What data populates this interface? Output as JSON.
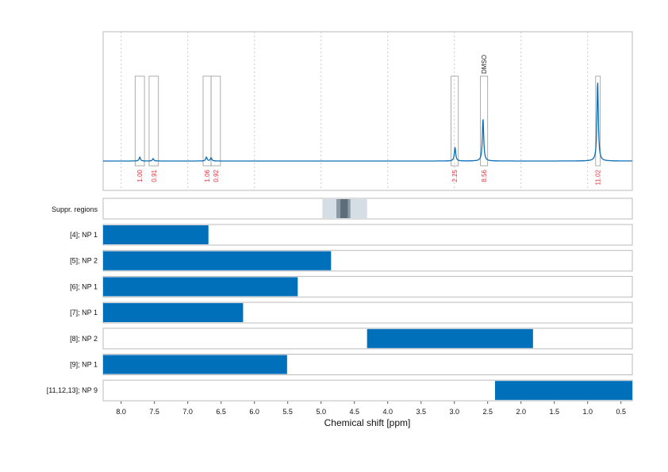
{
  "chart_data": {
    "type": "line",
    "xlabel": "Chemical shift [ppm]",
    "xlim": [
      8.27,
      0.33
    ],
    "x_reversed": true,
    "xticks": [
      "8.0",
      "7.5",
      "7.0",
      "6.5",
      "6.0",
      "5.5",
      "5.0",
      "4.5",
      "4.0",
      "3.5",
      "3.0",
      "2.5",
      "2.0",
      "1.5",
      "1.0",
      "0.5"
    ],
    "grid": "vertical dashed every 1 ppm",
    "colors": {
      "spectrum": "#0b6fb8",
      "bar": "#0070bb",
      "integral_label": "#e8303a",
      "suppr_light": "#d5dde5",
      "suppr_mid": "#8a9aa6",
      "suppr_dark": "#5d6e79"
    },
    "spectrum_peaks": [
      {
        "ppm": 7.72,
        "intensity": 0.05
      },
      {
        "ppm": 7.52,
        "intensity": 0.03
      },
      {
        "ppm": 6.72,
        "intensity": 0.05
      },
      {
        "ppm": 6.65,
        "intensity": 0.04
      },
      {
        "ppm": 2.99,
        "intensity": 0.17
      },
      {
        "ppm": 2.57,
        "intensity": 0.53
      },
      {
        "ppm": 0.85,
        "intensity": 1.0
      }
    ],
    "integrals": [
      {
        "from": 7.79,
        "to": 7.65,
        "label": "1.00"
      },
      {
        "from": 7.58,
        "to": 7.44,
        "label": "0.91"
      },
      {
        "from": 6.77,
        "to": 6.65,
        "label": "1.06"
      },
      {
        "from": 6.65,
        "to": 6.51,
        "label": "0.92"
      },
      {
        "from": 3.05,
        "to": 2.94,
        "label": "2.25"
      },
      {
        "from": 2.61,
        "to": 2.5,
        "label": "8.56",
        "annotation": "DMSO"
      },
      {
        "from": 0.88,
        "to": 0.81,
        "label": "11.02"
      }
    ],
    "suppression": {
      "label": "Suppr. regions",
      "light": [
        4.98,
        4.31
      ],
      "mid": [
        4.77,
        4.56
      ],
      "dark": [
        4.71,
        4.6
      ]
    },
    "rows": [
      {
        "label": "[4]; NP 1",
        "from": 8.27,
        "to": 6.69
      },
      {
        "label": "[5]; NP 2",
        "from": 8.27,
        "to": 4.85
      },
      {
        "label": "[6]; NP 1",
        "from": 8.27,
        "to": 5.35
      },
      {
        "label": "[7]; NP 1",
        "from": 8.27,
        "to": 6.17
      },
      {
        "label": "[8]; NP 2",
        "from": 4.31,
        "to": 1.82
      },
      {
        "label": "[9]; NP 1",
        "from": 8.27,
        "to": 5.51
      },
      {
        "label": "[11,12,13]; NP 9",
        "from": 2.39,
        "to": 0.33
      }
    ]
  }
}
